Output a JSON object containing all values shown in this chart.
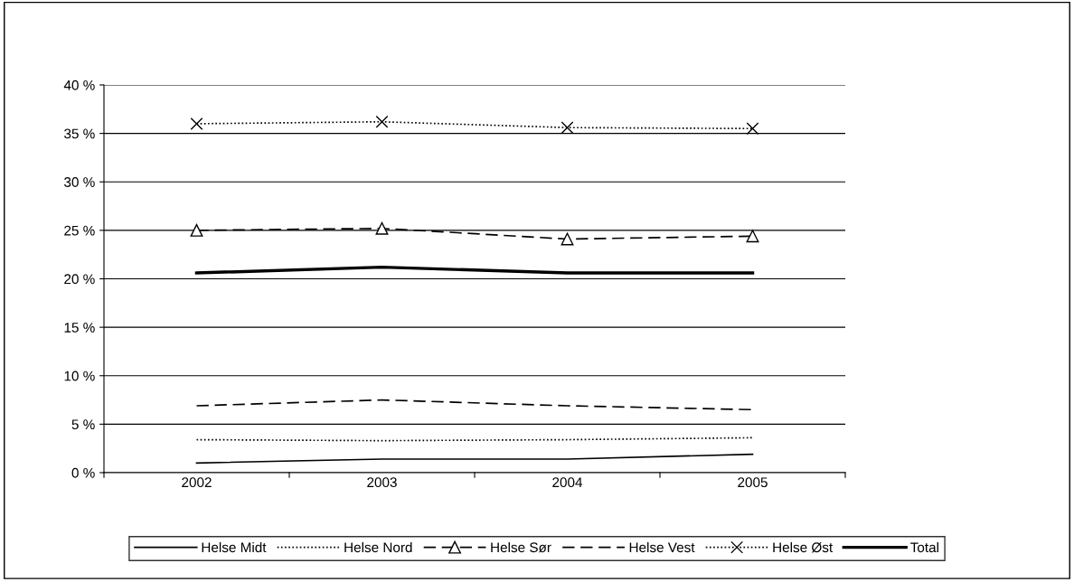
{
  "chart_data": {
    "type": "line",
    "categories": [
      "2002",
      "2003",
      "2004",
      "2005"
    ],
    "series": [
      {
        "name": "Helse Midt",
        "color": "#000000",
        "line_style": "solid",
        "marker": "none",
        "values": [
          1.0,
          1.4,
          1.4,
          1.9
        ]
      },
      {
        "name": "Helse Nord",
        "color": "#000000",
        "line_style": "dotted",
        "marker": "none",
        "values": [
          3.4,
          3.3,
          3.4,
          3.6
        ]
      },
      {
        "name": "Helse Sør",
        "color": "#000000",
        "line_style": "dashed",
        "marker": "triangle",
        "values": [
          25.0,
          25.2,
          24.1,
          24.4
        ]
      },
      {
        "name": "Helse Vest",
        "color": "#000000",
        "line_style": "dashed",
        "marker": "none",
        "values": [
          6.9,
          7.5,
          6.9,
          6.5
        ]
      },
      {
        "name": "Helse Øst",
        "color": "#000000",
        "line_style": "dotted",
        "marker": "cross",
        "values": [
          36.0,
          36.2,
          35.6,
          35.5
        ]
      },
      {
        "name": "Total",
        "color": "#000000",
        "line_style": "solid",
        "marker": "none",
        "values": [
          20.6,
          21.2,
          20.6,
          20.6
        ]
      }
    ],
    "ylim": [
      0,
      40
    ],
    "yticks": [
      {
        "value": 0,
        "label": "0 %"
      },
      {
        "value": 5,
        "label": "5 %"
      },
      {
        "value": 10,
        "label": "10 %"
      },
      {
        "value": 15,
        "label": "15 %"
      },
      {
        "value": 20,
        "label": "20 %"
      },
      {
        "value": 25,
        "label": "25 %"
      },
      {
        "value": 30,
        "label": "30 %"
      },
      {
        "value": 35,
        "label": "35 %"
      },
      {
        "value": 40,
        "label": "40 %"
      }
    ],
    "grid": "y",
    "legend": "bottom"
  }
}
